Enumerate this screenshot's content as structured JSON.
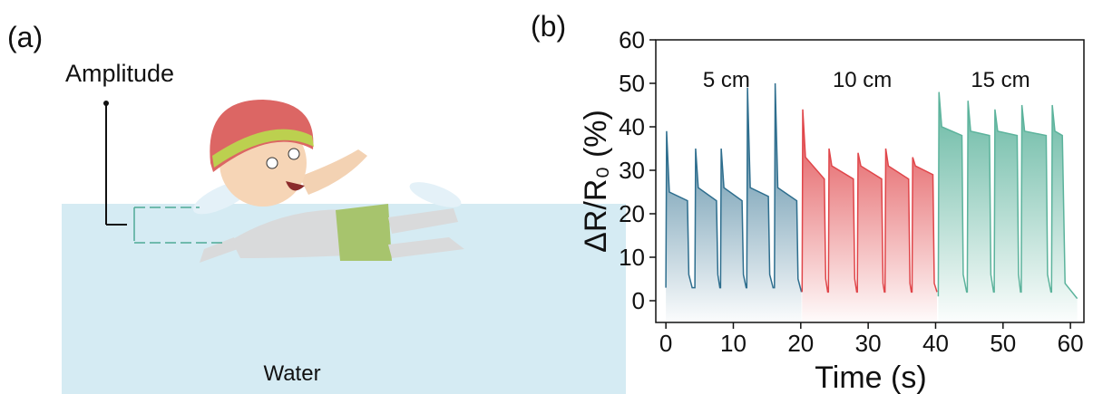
{
  "panel_a": {
    "label": "(a)",
    "amplitude_label": "Amplitude",
    "water_label": "Water"
  },
  "chart_data": {
    "type": "line",
    "panel_label": "(b)",
    "xlabel": "Time (s)",
    "ylabel": "ΔR/R₀ (%)",
    "xlim": [
      -1.5,
      62
    ],
    "ylim": [
      -5,
      60
    ],
    "xticks": [
      0,
      10,
      20,
      30,
      40,
      50,
      60
    ],
    "yticks": [
      0,
      10,
      20,
      30,
      40,
      50,
      60
    ],
    "series": [
      {
        "name": "5 cm",
        "color": "#2e6e8e",
        "x": [
          0,
          0.1,
          0.5,
          3.2,
          3.4,
          3.9,
          4.3,
          4.4,
          4.8,
          7.5,
          7.7,
          8.0,
          8.1,
          8.2,
          8.6,
          11.3,
          11.5,
          11.9,
          12,
          12.1,
          12.5,
          15.2,
          15.4,
          15.9,
          16.1,
          16.2,
          16.6,
          19.4,
          19.6,
          20.1
        ],
        "values": [
          3,
          39,
          25,
          23,
          6,
          3,
          3,
          35,
          26,
          23,
          6,
          3,
          3,
          35,
          26,
          23,
          6,
          3,
          3,
          49,
          26,
          24,
          6,
          3,
          3,
          50,
          26,
          23,
          5,
          2
        ]
      },
      {
        "name": "10 cm",
        "color": "#e0464a",
        "x": [
          20.2,
          20.3,
          20.7,
          23.5,
          23.7,
          24.0,
          24.1,
          24.2,
          24.6,
          27.8,
          28.0,
          28.3,
          28.4,
          28.5,
          28.9,
          32.0,
          32.2,
          32.4,
          32.5,
          32.6,
          33.0,
          36.0,
          36.2,
          36.4,
          36.5,
          36.6,
          37.0,
          39.6,
          39.8,
          40.2
        ],
        "values": [
          2,
          44,
          33,
          28,
          5,
          2,
          2,
          35,
          31,
          28,
          5,
          2,
          2,
          34,
          31,
          28,
          4,
          2,
          2,
          35,
          31,
          28,
          4,
          2,
          2,
          33,
          31,
          29,
          4,
          2
        ]
      },
      {
        "name": "15 cm",
        "color": "#5cb39c",
        "x": [
          40.4,
          40.5,
          40.9,
          43.9,
          44.1,
          44.6,
          44.7,
          44.8,
          45.2,
          48.0,
          48.2,
          48.6,
          48.7,
          48.8,
          49.2,
          52.1,
          52.3,
          52.6,
          52.7,
          52.8,
          53.2,
          56.4,
          56.6,
          57.1,
          57.2,
          57.3,
          57.7,
          58.8,
          59.2,
          61
        ],
        "values": [
          1,
          48,
          40,
          38,
          6,
          2,
          2,
          46,
          39,
          38,
          6,
          2,
          2,
          44,
          39,
          38,
          6,
          2,
          2,
          45,
          39,
          38,
          6,
          2,
          2,
          45,
          39,
          38,
          4,
          0.5
        ]
      }
    ]
  }
}
